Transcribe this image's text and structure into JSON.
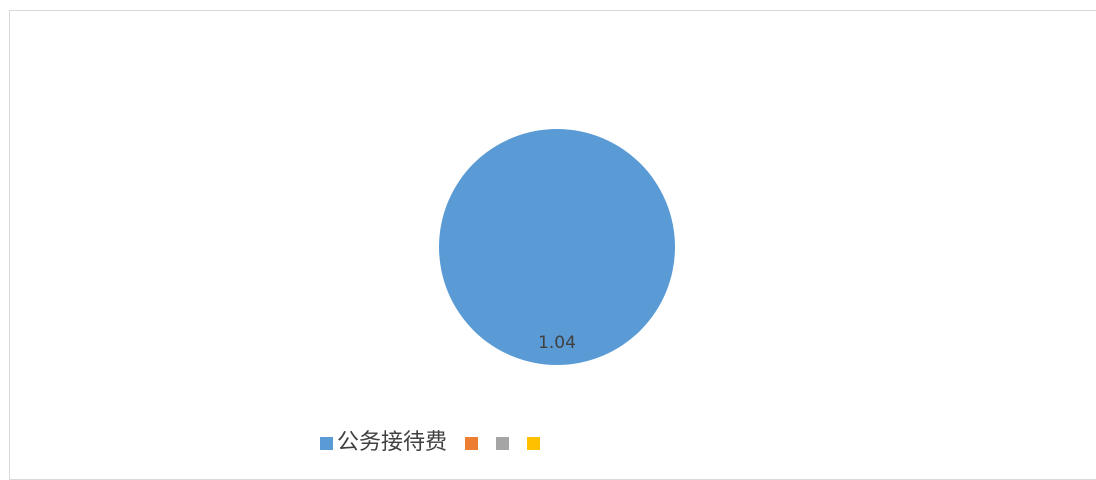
{
  "chart_data": {
    "type": "pie",
    "title": "",
    "categories": [
      "公务接待费",
      "",
      "",
      ""
    ],
    "values": [
      1.04,
      0,
      0,
      0
    ],
    "colors": [
      "#5b9bd5",
      "#ed7d31",
      "#a5a5a5",
      "#ffc000"
    ],
    "data_labels": [
      "1.04"
    ],
    "legend_position": "bottom"
  }
}
